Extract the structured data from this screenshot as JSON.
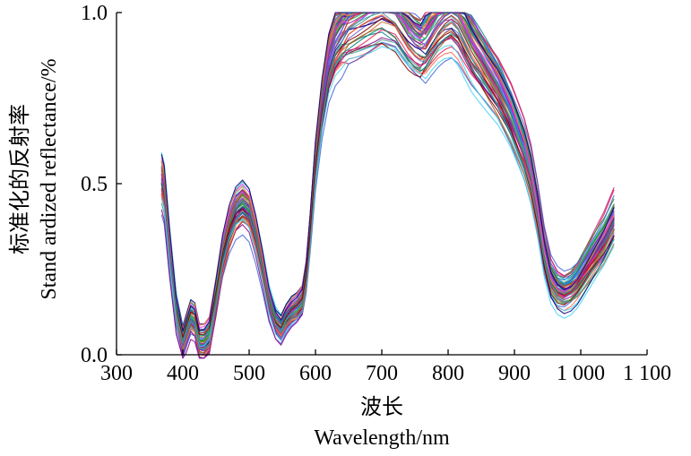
{
  "chart_data": {
    "type": "line",
    "title": "",
    "xlabel_cn": "波长",
    "xlabel_en": "Wavelength/nm",
    "ylabel_cn": "标准化的反射率",
    "ylabel_en": "Stand ardized reflectance/%",
    "xlim": [
      300,
      1100
    ],
    "ylim": [
      0.0,
      1.0
    ],
    "xticks": [
      300,
      400,
      500,
      600,
      700,
      800,
      900,
      1000,
      1100
    ],
    "xtick_labels": [
      "300",
      "400",
      "500",
      "600",
      "700",
      "800",
      "900",
      "1 000",
      "1 100"
    ],
    "yticks": [
      0.0,
      0.5,
      1.0
    ],
    "ytick_labels": [
      "0.0",
      "0.5",
      "1.0"
    ],
    "legend": "none",
    "grid": false,
    "base_spectrum": {
      "x": [
        368,
        372,
        380,
        390,
        400,
        405,
        412,
        418,
        425,
        432,
        440,
        450,
        460,
        470,
        480,
        490,
        500,
        510,
        520,
        530,
        540,
        548,
        556,
        564,
        572,
        580,
        586,
        592,
        600,
        610,
        620,
        630,
        640,
        650,
        660,
        670,
        680,
        690,
        700,
        710,
        720,
        730,
        740,
        750,
        758,
        766,
        775,
        785,
        795,
        805,
        815,
        825,
        835,
        845,
        855,
        865,
        875,
        885,
        895,
        905,
        915,
        925,
        935,
        945,
        955,
        965,
        975,
        985,
        995,
        1005,
        1015,
        1025,
        1035,
        1045,
        1050
      ],
      "y": [
        0.5,
        0.47,
        0.3,
        0.12,
        0.03,
        0.06,
        0.1,
        0.09,
        0.03,
        0.03,
        0.05,
        0.16,
        0.28,
        0.36,
        0.41,
        0.43,
        0.41,
        0.34,
        0.25,
        0.15,
        0.09,
        0.07,
        0.1,
        0.12,
        0.13,
        0.15,
        0.22,
        0.35,
        0.55,
        0.72,
        0.84,
        0.9,
        0.93,
        0.95,
        0.96,
        0.97,
        0.98,
        0.99,
        1.0,
        0.99,
        0.98,
        0.95,
        0.92,
        0.9,
        0.89,
        0.9,
        0.93,
        0.96,
        0.98,
        0.99,
        0.97,
        0.93,
        0.89,
        0.86,
        0.83,
        0.8,
        0.77,
        0.73,
        0.69,
        0.64,
        0.59,
        0.52,
        0.42,
        0.3,
        0.22,
        0.19,
        0.18,
        0.19,
        0.21,
        0.24,
        0.27,
        0.3,
        0.33,
        0.37,
        0.39
      ]
    },
    "series_count": 60,
    "series_colors": [
      "#e6194b",
      "#3cb44b",
      "#4363d8",
      "#911eb4",
      "#f58231",
      "#42d4f4",
      "#f032e6",
      "#008080",
      "#9a6324",
      "#800000",
      "#000075",
      "#469990",
      "#bf1f7a",
      "#2e8b57",
      "#6a5acd",
      "#d2691e",
      "#1e90ff",
      "#8b008b",
      "#228b22",
      "#b22222",
      "#20b2aa",
      "#ff6347",
      "#4169e1",
      "#9932cc"
    ]
  }
}
